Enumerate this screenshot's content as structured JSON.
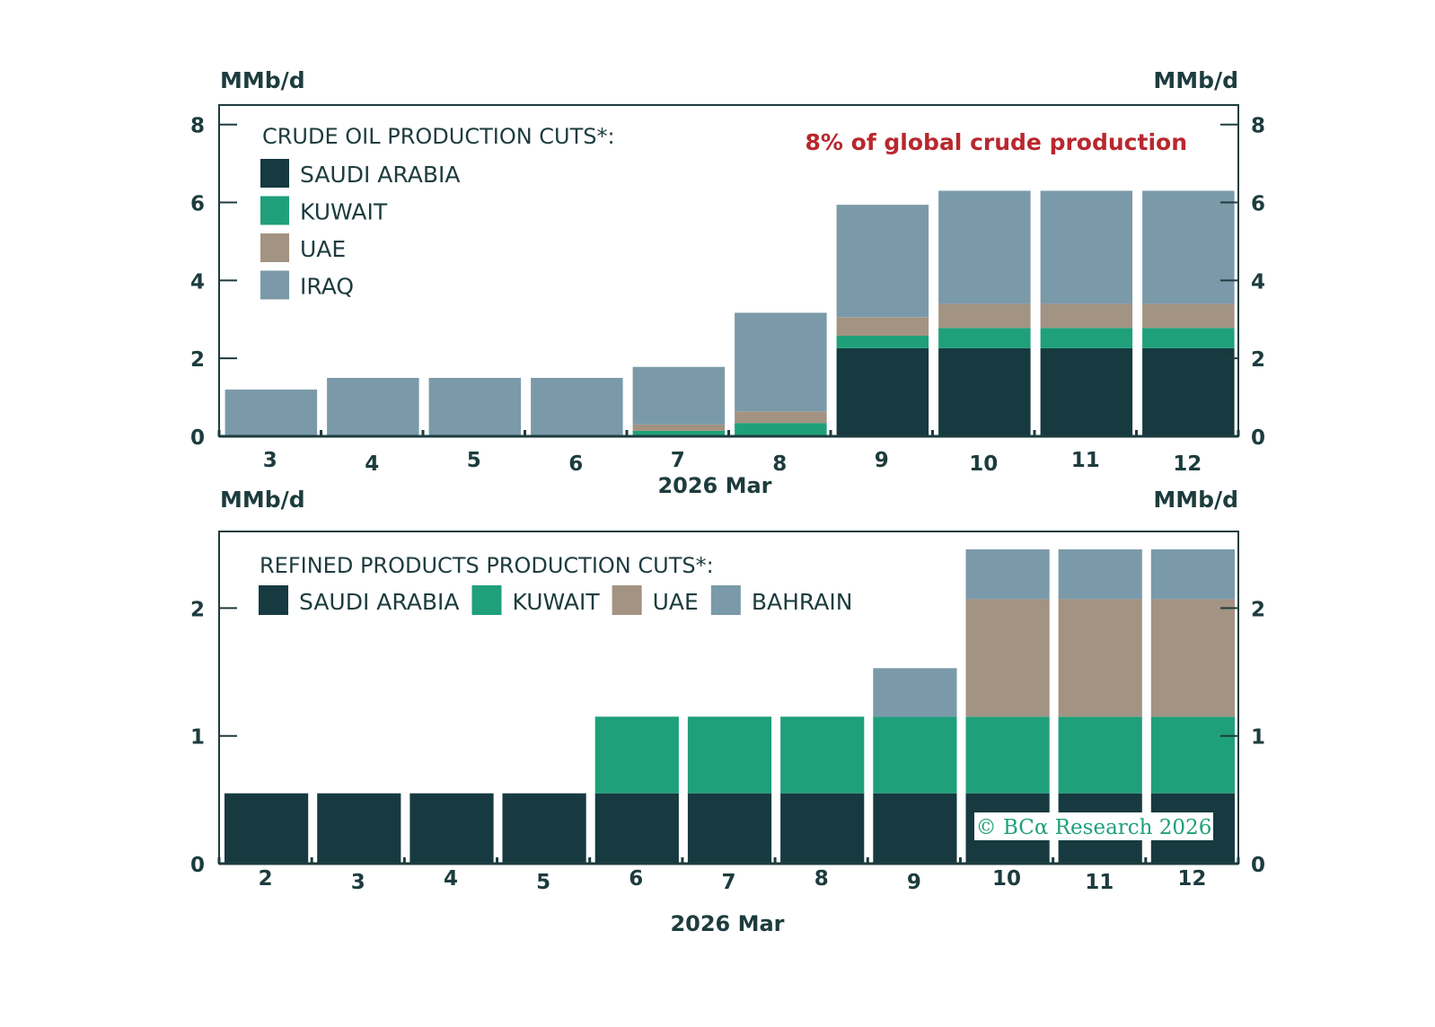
{
  "colors": {
    "saudi_arabia": "#163a40",
    "kuwait": "#1fa07a",
    "uae": "#a39382",
    "iraq": "#7a9aaa",
    "bahrain": "#7a9aaa",
    "axis": "#1d3c3e",
    "annotation": "#b8282e",
    "watermark": "#1fa07a"
  },
  "chart_data": [
    {
      "type": "bar",
      "stacked": true,
      "title": "CRUDE OIL PRODUCTION CUTS*:",
      "annotation": "8% of global crude production",
      "ylabel_left": "MMb/d",
      "ylabel_right": "MMb/d",
      "xlabel": "2026 Mar",
      "ylim": [
        0,
        8.5
      ],
      "yticks": [
        0,
        2,
        4,
        6,
        8
      ],
      "legend_placement": "top-left",
      "categories": [
        "3",
        "4",
        "5",
        "6",
        "7",
        "8",
        "9",
        "10",
        "11",
        "12"
      ],
      "series": [
        {
          "name": "SAUDI ARABIA",
          "color_key": "saudi_arabia",
          "values": [
            0,
            0,
            0,
            0,
            0,
            0,
            2.26,
            2.26,
            2.26,
            2.26
          ]
        },
        {
          "name": "KUWAIT",
          "color_key": "kuwait",
          "values": [
            0,
            0,
            0,
            0,
            0.14,
            0.34,
            0.32,
            0.52,
            0.52,
            0.52
          ]
        },
        {
          "name": "UAE",
          "color_key": "uae",
          "values": [
            0,
            0,
            0,
            0,
            0.16,
            0.3,
            0.48,
            0.62,
            0.62,
            0.62
          ]
        },
        {
          "name": "IRAQ",
          "color_key": "iraq",
          "values": [
            1.2,
            1.5,
            1.5,
            1.5,
            1.48,
            2.53,
            2.88,
            2.9,
            2.9,
            2.9
          ]
        }
      ]
    },
    {
      "type": "bar",
      "stacked": true,
      "title": "REFINED PRODUCTS PRODUCTION CUTS*:",
      "ylabel_left": "MMb/d",
      "ylabel_right": "MMb/d",
      "xlabel": "2026 Mar",
      "ylim": [
        0,
        2.6
      ],
      "yticks": [
        0,
        1,
        2
      ],
      "legend_placement": "top-left",
      "watermark": "© BCα Research 2026",
      "categories": [
        "2",
        "3",
        "4",
        "5",
        "6",
        "7",
        "8",
        "9",
        "10",
        "11",
        "12"
      ],
      "series": [
        {
          "name": "SAUDI ARABIA",
          "color_key": "saudi_arabia",
          "values": [
            0.55,
            0.55,
            0.55,
            0.55,
            0.55,
            0.55,
            0.55,
            0.55,
            0.55,
            0.55,
            0.55
          ]
        },
        {
          "name": "KUWAIT",
          "color_key": "kuwait",
          "values": [
            0,
            0,
            0,
            0,
            0.6,
            0.6,
            0.6,
            0.6,
            0.6,
            0.6,
            0.6
          ]
        },
        {
          "name": "UAE",
          "color_key": "uae",
          "values": [
            0,
            0,
            0,
            0,
            0,
            0,
            0,
            0,
            0.92,
            0.92,
            0.92
          ]
        },
        {
          "name": "BAHRAIN",
          "color_key": "bahrain",
          "values": [
            0,
            0,
            0,
            0,
            0,
            0,
            0,
            0.38,
            0.39,
            0.39,
            0.39
          ]
        }
      ]
    }
  ]
}
